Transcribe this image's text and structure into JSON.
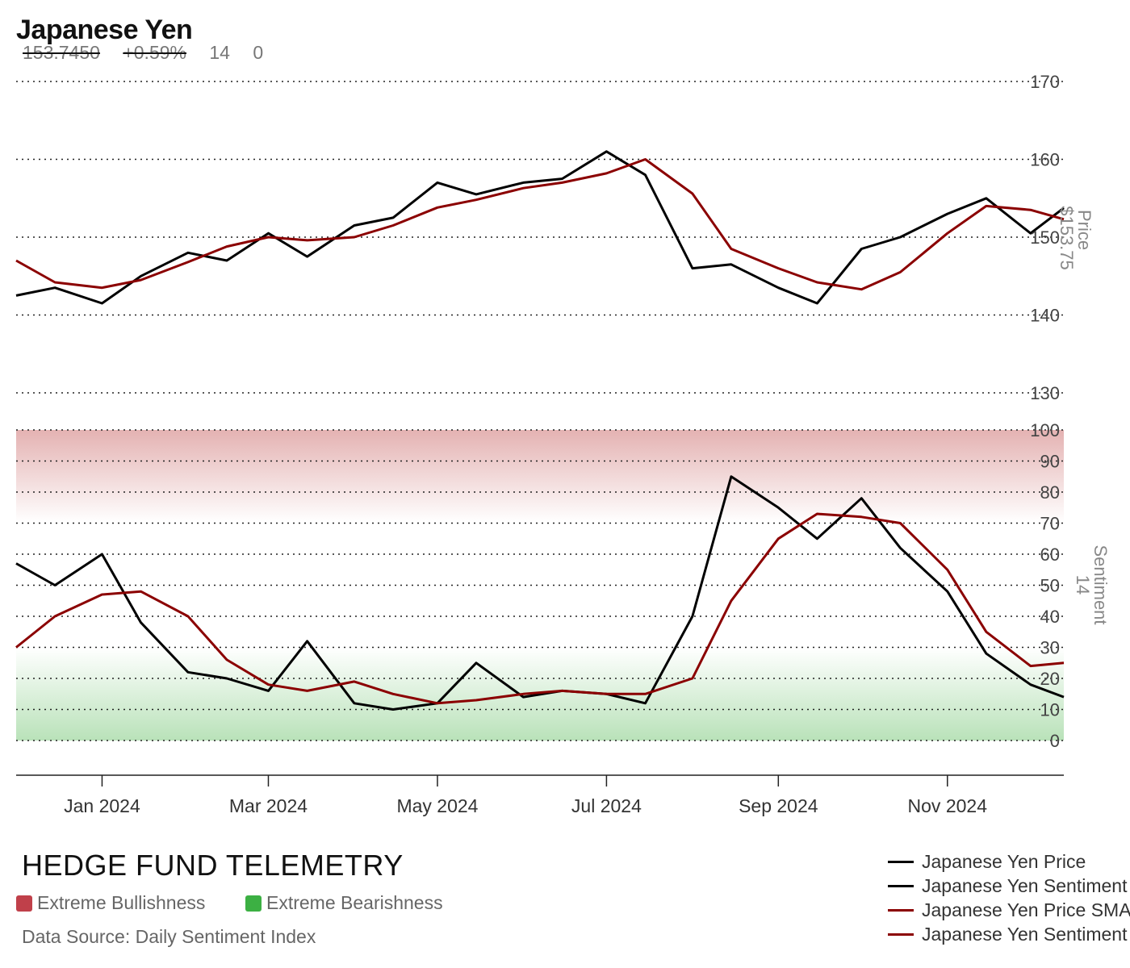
{
  "header": {
    "title": "Japanese Yen",
    "price": "153.7450",
    "change": "+0.59%",
    "sentiment": "14",
    "extra": "0"
  },
  "colors": {
    "price": "#000000",
    "sma": "#8b0000",
    "bullish_band": "#e8b4b4",
    "bearish_band": "#b9e2b9",
    "bullish_swatch": "#c0404a",
    "bearish_swatch": "#3cb043"
  },
  "footer": {
    "brand": "HEDGE FUND TELEMETRY",
    "bullish_label": "Extreme Bullishness",
    "bearish_label": "Extreme Bearishness",
    "source": "Data Source: Daily Sentiment Index"
  },
  "legend": [
    {
      "label": "Japanese Yen Price",
      "color": "#000000"
    },
    {
      "label": "Japanese Yen Sentiment",
      "color": "#000000"
    },
    {
      "label": "Japanese Yen Price SMA",
      "color": "#8b0000"
    },
    {
      "label": "Japanese Yen Sentiment SMA",
      "color": "#8b0000"
    }
  ],
  "chart_data": [
    {
      "type": "line",
      "title": "Japanese Yen",
      "ylabel": "Price",
      "current_value_label": "$153.75",
      "ylim": [
        130,
        170
      ],
      "yticks": [
        130,
        140,
        150,
        160,
        170
      ],
      "x": [
        "2023-12-01",
        "2023-12-15",
        "2024-01-01",
        "2024-01-15",
        "2024-02-01",
        "2024-02-15",
        "2024-03-01",
        "2024-03-15",
        "2024-04-01",
        "2024-04-15",
        "2024-05-01",
        "2024-05-15",
        "2024-06-01",
        "2024-06-15",
        "2024-07-01",
        "2024-07-15",
        "2024-08-01",
        "2024-08-15",
        "2024-09-01",
        "2024-09-15",
        "2024-10-01",
        "2024-10-15",
        "2024-11-01",
        "2024-11-15",
        "2024-12-01",
        "2024-12-13"
      ],
      "series": [
        {
          "name": "Japanese Yen Price",
          "color": "#000000",
          "values": [
            142.5,
            143.5,
            141.5,
            145,
            148,
            147,
            150.5,
            147.5,
            151.5,
            152.5,
            157,
            155.5,
            157,
            157.5,
            161,
            158,
            146,
            146.5,
            143.5,
            141.5,
            148.5,
            150,
            153,
            155,
            150.5,
            153.75
          ]
        },
        {
          "name": "Japanese Yen Price SMA",
          "color": "#8b0000",
          "values": [
            147,
            144.2,
            143.5,
            144.5,
            146.8,
            148.8,
            150,
            149.6,
            150,
            151.5,
            153.8,
            154.8,
            156.3,
            157,
            158.2,
            160,
            155.6,
            148.5,
            146,
            144.2,
            143.3,
            145.5,
            150.5,
            154,
            153.5,
            152.3
          ]
        }
      ]
    },
    {
      "type": "line",
      "ylabel": "Sentiment",
      "current_value_label": "14",
      "ylim": [
        0,
        100
      ],
      "yticks": [
        0,
        10,
        20,
        30,
        40,
        50,
        60,
        70,
        80,
        90,
        100
      ],
      "bands": [
        {
          "label": "Extreme Bullishness",
          "range": [
            70,
            100
          ]
        },
        {
          "label": "Extreme Bearishness",
          "range": [
            0,
            30
          ]
        }
      ],
      "x": [
        "2023-12-01",
        "2023-12-15",
        "2024-01-01",
        "2024-01-15",
        "2024-02-01",
        "2024-02-15",
        "2024-03-01",
        "2024-03-15",
        "2024-04-01",
        "2024-04-15",
        "2024-05-01",
        "2024-05-15",
        "2024-06-01",
        "2024-06-15",
        "2024-07-01",
        "2024-07-15",
        "2024-08-01",
        "2024-08-15",
        "2024-09-01",
        "2024-09-15",
        "2024-10-01",
        "2024-10-15",
        "2024-11-01",
        "2024-11-15",
        "2024-12-01",
        "2024-12-13"
      ],
      "series": [
        {
          "name": "Japanese Yen Sentiment",
          "color": "#000000",
          "values": [
            57,
            50,
            60,
            38,
            22,
            20,
            16,
            32,
            12,
            10,
            12,
            25,
            14,
            16,
            15,
            12,
            40,
            85,
            75,
            65,
            78,
            62,
            48,
            28,
            18,
            14
          ]
        },
        {
          "name": "Japanese Yen Sentiment SMA",
          "color": "#8b0000",
          "values": [
            30,
            40,
            47,
            48,
            40,
            26,
            18,
            16,
            19,
            15,
            12,
            13,
            15,
            16,
            15,
            15,
            20,
            45,
            65,
            73,
            72,
            70,
            55,
            35,
            24,
            25
          ]
        }
      ]
    }
  ],
  "x_axis": {
    "labels": [
      "Jan 2024",
      "Mar 2024",
      "May 2024",
      "Jul 2024",
      "Sep 2024",
      "Nov 2024"
    ],
    "dates": [
      "2024-01-01",
      "2024-03-01",
      "2024-05-01",
      "2024-07-01",
      "2024-09-01",
      "2024-11-01"
    ]
  }
}
